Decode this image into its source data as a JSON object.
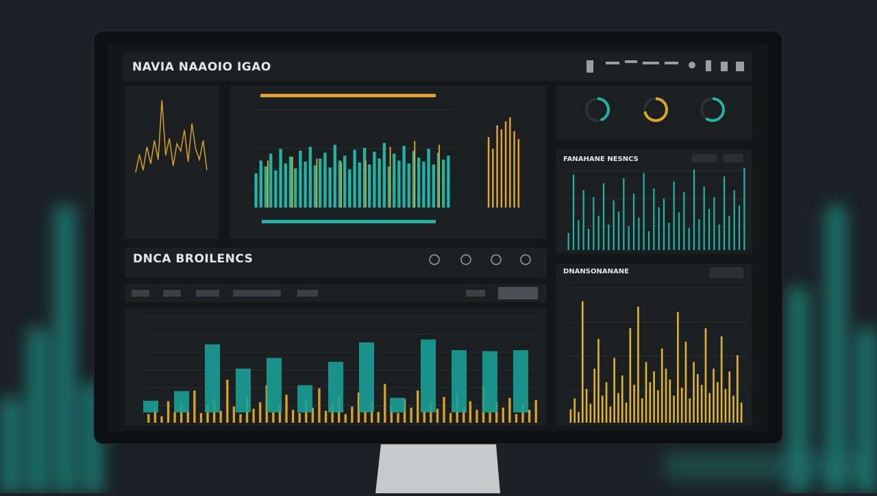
{
  "header": {
    "title": "NAVIA NAAOIO IGAO"
  },
  "section": {
    "title": "DNCA BROILENCS"
  },
  "signal_panel": {
    "title": "FANAHANE NESNCS"
  },
  "density_panel": {
    "title": "DNANSONANANE"
  },
  "gauges": {
    "ylim": [
      0,
      100
    ],
    "values": [
      45,
      72,
      60
    ],
    "colors": [
      "#1fb5a5",
      "#e0a526",
      "#1fb5a5"
    ]
  },
  "trend": {
    "ylim": [
      0,
      100
    ],
    "color": "#d9a322",
    "values": [
      28,
      45,
      30,
      52,
      36,
      58,
      40,
      96,
      44,
      60,
      34,
      55,
      48,
      68,
      38,
      74,
      50,
      40,
      58,
      30
    ]
  },
  "activity": {
    "ylim": [
      0,
      100
    ],
    "color": "#1fb5a5",
    "values": [
      35,
      48,
      42,
      55,
      38,
      60,
      45,
      52,
      40,
      58,
      47,
      62,
      43,
      50,
      56,
      41,
      64,
      48,
      53,
      39,
      59,
      46,
      61,
      44,
      57,
      50,
      66,
      42,
      55,
      48,
      63,
      45,
      58,
      51,
      47,
      60,
      44,
      56,
      49,
      53
    ],
    "spikes": [
      48,
      52,
      50,
      46,
      48,
      62,
      68,
      64
    ],
    "spike_color": "#d9a322"
  },
  "volume": {
    "ylim": [
      0,
      100
    ],
    "color": "#e0a526",
    "values": [
      72,
      60,
      84,
      80,
      88,
      92,
      78,
      70
    ]
  },
  "signal": {
    "ylim": [
      0,
      100
    ],
    "color": "#1fb5a5",
    "values": [
      20,
      88,
      35,
      70,
      25,
      62,
      40,
      78,
      30,
      58,
      45,
      84,
      28,
      66,
      38,
      90,
      22,
      72,
      50,
      60,
      32,
      80,
      44,
      68,
      26,
      94,
      36,
      74,
      48,
      62,
      30,
      86,
      40,
      70,
      52,
      96
    ]
  },
  "distribution": {
    "ylim": [
      0,
      100
    ],
    "color": "#1a9f96",
    "values": [
      12,
      22,
      70,
      45,
      56,
      28,
      52,
      72,
      15,
      75,
      64,
      63,
      64
    ],
    "fine": [
      8,
      14,
      6,
      20,
      10,
      18,
      12,
      30,
      9,
      16,
      22,
      11,
      40,
      15,
      8,
      24,
      13,
      19,
      35,
      10,
      17,
      26,
      12,
      9,
      21,
      14,
      32,
      11,
      18,
      25,
      8,
      15,
      28,
      12,
      20,
      10,
      36,
      16,
      9,
      22,
      14,
      30,
      11,
      18,
      13,
      24,
      9,
      27,
      15,
      20,
      12,
      34,
      10,
      19,
      14,
      23,
      8,
      17,
      12,
      21
    ],
    "fine_color": "#d9a322"
  },
  "density": {
    "ylim": [
      0,
      100
    ],
    "color": "#e0b526",
    "values": [
      10,
      18,
      8,
      90,
      25,
      14,
      40,
      62,
      20,
      30,
      12,
      48,
      22,
      35,
      15,
      70,
      28,
      86,
      18,
      45,
      30,
      38,
      24,
      55,
      40,
      32,
      20,
      82,
      26,
      60,
      18,
      45,
      36,
      28,
      70,
      22,
      40,
      30,
      64,
      25,
      38,
      20,
      50,
      15
    ]
  }
}
